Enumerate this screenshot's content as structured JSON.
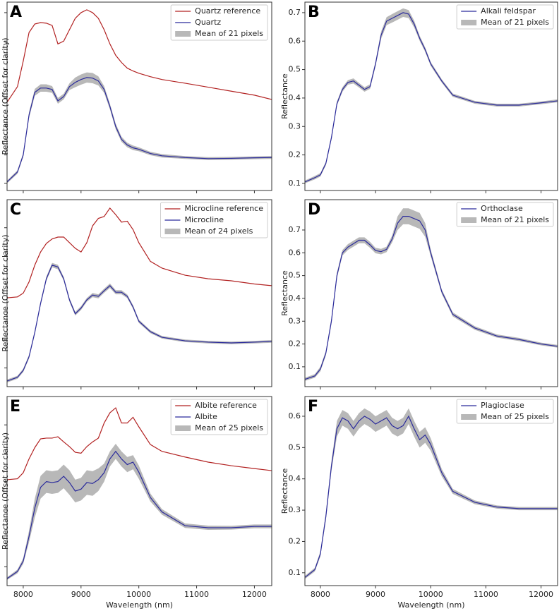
{
  "chart_data": [
    {
      "type": "line",
      "title": "A",
      "ylabel": "Reflectance (Offset for clarity)",
      "legend": "upper right",
      "xlim": [
        7720,
        12300
      ],
      "xticks": [
        8000,
        9000,
        10000,
        11000,
        12000
      ],
      "xtick_labels": false,
      "ylim": [
        0.075,
        0.737
      ],
      "yticks": [
        0.1,
        0.2,
        0.3,
        0.4,
        0.5,
        0.6,
        0.7
      ],
      "ytick_labels": false,
      "x": [
        7720,
        7900,
        8000,
        8100,
        8200,
        8300,
        8400,
        8500,
        8600,
        8700,
        8800,
        8900,
        9000,
        9100,
        9200,
        9300,
        9400,
        9500,
        9600,
        9700,
        9800,
        9900,
        10000,
        10200,
        10400,
        10800,
        11200,
        11600,
        12000,
        12300
      ],
      "series": [
        {
          "name": "Quartz reference",
          "color": "#b22222",
          "values": [
            0.385,
            0.44,
            0.53,
            0.63,
            0.66,
            0.665,
            0.663,
            0.655,
            0.59,
            0.6,
            0.64,
            0.68,
            0.7,
            0.71,
            0.7,
            0.68,
            0.64,
            0.59,
            0.55,
            0.525,
            0.505,
            0.495,
            0.487,
            0.475,
            0.465,
            0.452,
            0.438,
            0.424,
            0.41,
            0.395
          ]
        },
        {
          "name": "Quartz",
          "color": "#2b2b9c",
          "values": [
            0.105,
            0.14,
            0.2,
            0.34,
            0.42,
            0.435,
            0.435,
            0.43,
            0.39,
            0.405,
            0.44,
            0.455,
            0.465,
            0.472,
            0.47,
            0.46,
            0.43,
            0.37,
            0.3,
            0.255,
            0.235,
            0.225,
            0.22,
            0.205,
            0.197,
            0.191,
            0.187,
            0.188,
            0.19,
            0.191
          ]
        },
        {
          "name": "Mean of 21 pixels",
          "color": "#b8b8b8",
          "lower": [
            0.1,
            0.134,
            0.193,
            0.33,
            0.408,
            0.422,
            0.422,
            0.418,
            0.38,
            0.395,
            0.428,
            0.438,
            0.447,
            0.454,
            0.452,
            0.444,
            0.418,
            0.36,
            0.29,
            0.246,
            0.227,
            0.217,
            0.213,
            0.199,
            0.191,
            0.186,
            0.182,
            0.183,
            0.185,
            0.186
          ],
          "upper": [
            0.11,
            0.146,
            0.207,
            0.35,
            0.432,
            0.448,
            0.448,
            0.442,
            0.4,
            0.415,
            0.452,
            0.472,
            0.483,
            0.49,
            0.488,
            0.476,
            0.442,
            0.38,
            0.31,
            0.264,
            0.243,
            0.233,
            0.227,
            0.211,
            0.203,
            0.196,
            0.192,
            0.193,
            0.195,
            0.196
          ]
        }
      ]
    },
    {
      "type": "line",
      "title": "B",
      "ylabel": "Reflectance",
      "legend": "upper right",
      "xlim": [
        7720,
        12300
      ],
      "xticks": [
        8000,
        9000,
        10000,
        11000,
        12000
      ],
      "xtick_labels": false,
      "ylim": [
        0.075,
        0.737
      ],
      "yticks": [
        0.1,
        0.2,
        0.3,
        0.4,
        0.5,
        0.6,
        0.7
      ],
      "x": [
        7720,
        7900,
        8000,
        8100,
        8200,
        8300,
        8400,
        8500,
        8600,
        8700,
        8800,
        8900,
        9000,
        9100,
        9200,
        9300,
        9400,
        9500,
        9600,
        9700,
        9800,
        9900,
        10000,
        10200,
        10400,
        10800,
        11200,
        11600,
        12000,
        12300
      ],
      "series": [
        {
          "name": "Alkali feldspar",
          "color": "#2b2b9c",
          "values": [
            0.105,
            0.12,
            0.13,
            0.17,
            0.26,
            0.38,
            0.43,
            0.455,
            0.46,
            0.445,
            0.43,
            0.44,
            0.52,
            0.62,
            0.67,
            0.68,
            0.69,
            0.7,
            0.695,
            0.66,
            0.61,
            0.57,
            0.52,
            0.46,
            0.41,
            0.385,
            0.375,
            0.375,
            0.383,
            0.39
          ]
        },
        {
          "name": "Mean of 21 pixels",
          "color": "#b8b8b8",
          "lower": [
            0.1,
            0.114,
            0.124,
            0.164,
            0.253,
            0.373,
            0.422,
            0.447,
            0.451,
            0.437,
            0.422,
            0.432,
            0.511,
            0.607,
            0.656,
            0.665,
            0.675,
            0.685,
            0.681,
            0.648,
            0.601,
            0.562,
            0.513,
            0.454,
            0.404,
            0.38,
            0.37,
            0.37,
            0.378,
            0.385
          ],
          "upper": [
            0.11,
            0.126,
            0.136,
            0.176,
            0.267,
            0.387,
            0.438,
            0.463,
            0.469,
            0.453,
            0.438,
            0.448,
            0.529,
            0.633,
            0.684,
            0.695,
            0.705,
            0.715,
            0.709,
            0.672,
            0.619,
            0.578,
            0.527,
            0.466,
            0.416,
            0.39,
            0.38,
            0.38,
            0.388,
            0.395
          ]
        }
      ]
    },
    {
      "type": "line",
      "title": "C",
      "ylabel": "Reflectance (Offset for clarity)",
      "legend": "upper right",
      "xlim": [
        7720,
        12300
      ],
      "xticks": [
        8000,
        9000,
        10000,
        11000,
        12000
      ],
      "xtick_labels": false,
      "ylim": [
        0,
        1
      ],
      "yticks": [
        0.1,
        0.25,
        0.4,
        0.55,
        0.7,
        0.85
      ],
      "ytick_labels": false,
      "x": [
        7720,
        7900,
        8000,
        8100,
        8200,
        8300,
        8400,
        8500,
        8600,
        8700,
        8800,
        8900,
        9000,
        9100,
        9200,
        9300,
        9400,
        9500,
        9600,
        9700,
        9800,
        9900,
        10000,
        10200,
        10400,
        10800,
        11200,
        11600,
        12000,
        12300
      ],
      "series": [
        {
          "name": "Microcline reference",
          "color": "#b22222",
          "values": [
            0.475,
            0.48,
            0.5,
            0.56,
            0.65,
            0.72,
            0.766,
            0.79,
            0.8,
            0.8,
            0.77,
            0.74,
            0.72,
            0.77,
            0.86,
            0.9,
            0.91,
            0.955,
            0.92,
            0.88,
            0.885,
            0.84,
            0.77,
            0.67,
            0.634,
            0.596,
            0.577,
            0.566,
            0.549,
            0.54
          ]
        },
        {
          "name": "Microcline",
          "color": "#2b2b9c",
          "values": [
            0.03,
            0.05,
            0.087,
            0.16,
            0.29,
            0.445,
            0.577,
            0.65,
            0.64,
            0.577,
            0.464,
            0.39,
            0.42,
            0.464,
            0.49,
            0.483,
            0.513,
            0.54,
            0.505,
            0.505,
            0.483,
            0.426,
            0.35,
            0.294,
            0.264,
            0.245,
            0.238,
            0.234,
            0.238,
            0.242
          ]
        },
        {
          "name": "Mean of 24 pixels",
          "color": "#b8b8b8",
          "lower": [
            0.022,
            0.042,
            0.078,
            0.15,
            0.28,
            0.435,
            0.566,
            0.638,
            0.628,
            0.567,
            0.454,
            0.38,
            0.41,
            0.454,
            0.479,
            0.472,
            0.502,
            0.528,
            0.494,
            0.494,
            0.473,
            0.416,
            0.341,
            0.286,
            0.257,
            0.238,
            0.231,
            0.227,
            0.231,
            0.235
          ],
          "upper": [
            0.038,
            0.058,
            0.096,
            0.17,
            0.3,
            0.455,
            0.588,
            0.662,
            0.652,
            0.587,
            0.474,
            0.4,
            0.43,
            0.474,
            0.501,
            0.494,
            0.524,
            0.552,
            0.516,
            0.516,
            0.493,
            0.436,
            0.359,
            0.302,
            0.271,
            0.252,
            0.245,
            0.241,
            0.245,
            0.249
          ]
        }
      ]
    },
    {
      "type": "line",
      "title": "D",
      "ylabel": "Reflectance",
      "legend": "upper right",
      "xlim": [
        7720,
        12300
      ],
      "xticks": [
        8000,
        9000,
        10000,
        11000,
        12000
      ],
      "xtick_labels": false,
      "ylim": [
        0.013,
        0.833
      ],
      "yticks": [
        0.1,
        0.2,
        0.3,
        0.4,
        0.5,
        0.6,
        0.7
      ],
      "x": [
        7720,
        7900,
        8000,
        8100,
        8200,
        8300,
        8400,
        8500,
        8600,
        8700,
        8800,
        8900,
        9000,
        9100,
        9200,
        9300,
        9400,
        9500,
        9600,
        9700,
        9800,
        9900,
        10000,
        10200,
        10400,
        10800,
        11200,
        11600,
        12000,
        12300
      ],
      "series": [
        {
          "name": "Orthoclase",
          "color": "#2b2b9c",
          "values": [
            0.045,
            0.06,
            0.09,
            0.16,
            0.3,
            0.5,
            0.6,
            0.625,
            0.64,
            0.655,
            0.655,
            0.635,
            0.61,
            0.605,
            0.615,
            0.66,
            0.73,
            0.76,
            0.76,
            0.75,
            0.74,
            0.7,
            0.6,
            0.43,
            0.33,
            0.27,
            0.235,
            0.22,
            0.2,
            0.19
          ]
        },
        {
          "name": "Mean of 21 pixels",
          "color": "#b8b8b8",
          "lower": [
            0.038,
            0.052,
            0.08,
            0.15,
            0.288,
            0.488,
            0.588,
            0.612,
            0.627,
            0.642,
            0.642,
            0.622,
            0.598,
            0.593,
            0.603,
            0.645,
            0.7,
            0.725,
            0.725,
            0.715,
            0.705,
            0.67,
            0.585,
            0.42,
            0.321,
            0.262,
            0.228,
            0.213,
            0.194,
            0.184
          ],
          "upper": [
            0.052,
            0.068,
            0.1,
            0.17,
            0.312,
            0.512,
            0.612,
            0.638,
            0.653,
            0.668,
            0.668,
            0.648,
            0.622,
            0.617,
            0.627,
            0.675,
            0.76,
            0.795,
            0.795,
            0.785,
            0.775,
            0.73,
            0.615,
            0.44,
            0.339,
            0.278,
            0.242,
            0.227,
            0.206,
            0.196
          ]
        }
      ]
    },
    {
      "type": "line",
      "title": "E",
      "ylabel": "Reflectance (Offset for clarity)",
      "xlabel": "Wavelength (nm)",
      "legend": "upper right",
      "xlim": [
        7720,
        12300
      ],
      "xticks": [
        8000,
        9000,
        10000,
        11000,
        12000
      ],
      "ylim": [
        0,
        1
      ],
      "yticks": [
        0.1,
        0.25,
        0.4,
        0.55,
        0.7,
        0.85
      ],
      "ytick_labels": false,
      "x": [
        7720,
        7900,
        8000,
        8100,
        8200,
        8300,
        8400,
        8500,
        8600,
        8700,
        8800,
        8900,
        9000,
        9100,
        9200,
        9300,
        9400,
        9500,
        9600,
        9700,
        9800,
        9900,
        10000,
        10200,
        10400,
        10800,
        11200,
        11600,
        12000,
        12300
      ],
      "series": [
        {
          "name": "Albite reference",
          "color": "#b22222",
          "values": [
            0.56,
            0.565,
            0.597,
            0.67,
            0.73,
            0.776,
            0.78,
            0.78,
            0.787,
            0.76,
            0.735,
            0.705,
            0.7,
            0.735,
            0.76,
            0.78,
            0.86,
            0.914,
            0.94,
            0.86,
            0.86,
            0.89,
            0.84,
            0.746,
            0.71,
            0.68,
            0.653,
            0.634,
            0.619,
            0.608
          ]
        },
        {
          "name": "Albite",
          "color": "#2b2b9c",
          "values": [
            0.037,
            0.075,
            0.13,
            0.26,
            0.41,
            0.52,
            0.55,
            0.545,
            0.55,
            0.578,
            0.545,
            0.5,
            0.51,
            0.545,
            0.54,
            0.56,
            0.597,
            0.67,
            0.71,
            0.67,
            0.64,
            0.653,
            0.6,
            0.466,
            0.39,
            0.317,
            0.306,
            0.306,
            0.313,
            0.313
          ]
        },
        {
          "name": "Mean of 25 pixels",
          "color": "#b8b8b8",
          "lower": [
            0.03,
            0.065,
            0.115,
            0.23,
            0.36,
            0.46,
            0.49,
            0.485,
            0.49,
            0.515,
            0.48,
            0.44,
            0.45,
            0.48,
            0.475,
            0.5,
            0.55,
            0.63,
            0.67,
            0.63,
            0.6,
            0.615,
            0.565,
            0.445,
            0.375,
            0.305,
            0.295,
            0.296,
            0.303,
            0.303
          ],
          "upper": [
            0.044,
            0.085,
            0.145,
            0.29,
            0.46,
            0.58,
            0.61,
            0.605,
            0.61,
            0.64,
            0.61,
            0.56,
            0.57,
            0.61,
            0.605,
            0.62,
            0.645,
            0.71,
            0.75,
            0.71,
            0.68,
            0.69,
            0.635,
            0.487,
            0.405,
            0.329,
            0.317,
            0.316,
            0.323,
            0.323
          ]
        }
      ]
    },
    {
      "type": "line",
      "title": "F",
      "ylabel": "Reflectance",
      "xlabel": "Wavelength (nm)",
      "legend": "upper right",
      "xlim": [
        7720,
        12300
      ],
      "xticks": [
        8000,
        9000,
        10000,
        11000,
        12000
      ],
      "ylim": [
        0.059,
        0.663
      ],
      "yticks": [
        0.1,
        0.2,
        0.3,
        0.4,
        0.5,
        0.6
      ],
      "x": [
        7720,
        7900,
        8000,
        8100,
        8200,
        8300,
        8400,
        8500,
        8600,
        8700,
        8800,
        8900,
        9000,
        9100,
        9200,
        9300,
        9400,
        9500,
        9600,
        9700,
        9800,
        9900,
        10000,
        10200,
        10400,
        10800,
        11200,
        11600,
        12000,
        12300
      ],
      "series": [
        {
          "name": "Plagioclase",
          "color": "#2b2b9c",
          "values": [
            0.085,
            0.11,
            0.16,
            0.28,
            0.44,
            0.56,
            0.595,
            0.585,
            0.56,
            0.585,
            0.6,
            0.59,
            0.575,
            0.585,
            0.595,
            0.57,
            0.56,
            0.57,
            0.6,
            0.56,
            0.525,
            0.54,
            0.51,
            0.42,
            0.36,
            0.325,
            0.31,
            0.305,
            0.305,
            0.305
          ]
        },
        {
          "name": "Mean of 25 pixels",
          "color": "#b8b8b8",
          "lower": [
            0.08,
            0.104,
            0.152,
            0.268,
            0.425,
            0.535,
            0.57,
            0.56,
            0.535,
            0.56,
            0.575,
            0.565,
            0.55,
            0.56,
            0.57,
            0.545,
            0.535,
            0.545,
            0.575,
            0.535,
            0.5,
            0.515,
            0.49,
            0.408,
            0.352,
            0.319,
            0.305,
            0.3,
            0.3,
            0.3
          ],
          "upper": [
            0.09,
            0.116,
            0.168,
            0.292,
            0.455,
            0.585,
            0.62,
            0.61,
            0.585,
            0.61,
            0.625,
            0.615,
            0.6,
            0.61,
            0.62,
            0.595,
            0.585,
            0.595,
            0.625,
            0.585,
            0.55,
            0.565,
            0.53,
            0.432,
            0.368,
            0.331,
            0.315,
            0.31,
            0.31,
            0.31
          ]
        }
      ]
    }
  ]
}
